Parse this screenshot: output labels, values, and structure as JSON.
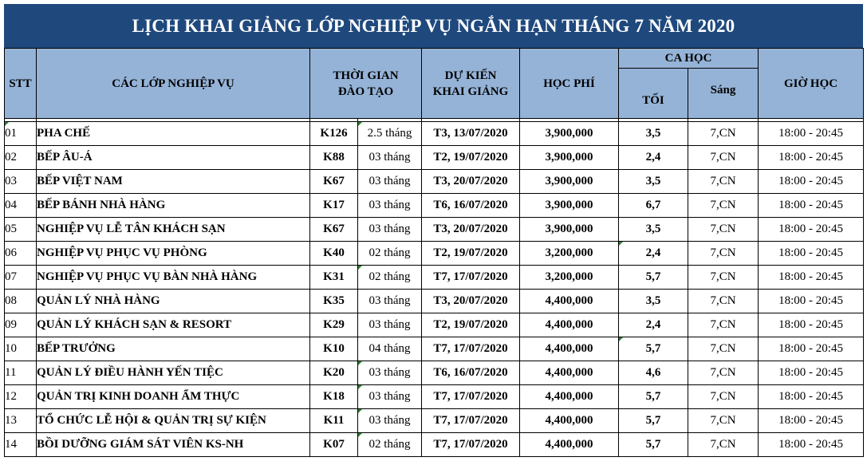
{
  "title": "LỊCH KHAI GIẢNG LỚP NGHIỆP VỤ NGẮN HẠN THÁNG 7 NĂM 2020",
  "colors": {
    "title_bg": "#1f497d",
    "header_bg": "#95b3d7"
  },
  "headers": {
    "stt": "STT",
    "course": "CÁC LỚP NGHIỆP VỤ",
    "duration_l1": "THỜI GIAN",
    "duration_l2": "ĐÀO TẠO",
    "start_l1": "DỰ KIẾN",
    "start_l2": "KHAI GIẢNG",
    "fee": "HỌC PHÍ",
    "ca_hoc": "CA HỌC",
    "toi": "TỐI",
    "sang": "Sáng",
    "gio_hoc": "GIỜ HỌC"
  },
  "rows": [
    {
      "stt": "01",
      "name": "PHA CHẾ",
      "code": "K126",
      "duration": "2.5 tháng",
      "start": "T3, 13/07/2020",
      "fee": "3,900,000",
      "toi": "3,5",
      "sang": "7,CN",
      "time": "18:00 - 20:45"
    },
    {
      "stt": "02",
      "name": "BẾP ÂU-Á",
      "code": "K88",
      "duration": "03 tháng",
      "start": "T2, 19/07/2020",
      "fee": "3,900,000",
      "toi": "2,4",
      "sang": "7,CN",
      "time": "18:00 - 20:45"
    },
    {
      "stt": "03",
      "name": "BẾP VIỆT NAM",
      "code": "K67",
      "duration": "03 tháng",
      "start": "T3, 20/07/2020",
      "fee": "3,900,000",
      "toi": "3,5",
      "sang": "7,CN",
      "time": "18:00 - 20:45"
    },
    {
      "stt": "04",
      "name": "BẾP BÁNH NHÀ HÀNG",
      "code": "K17",
      "duration": "03 tháng",
      "start": "T6, 16/07/2020",
      "fee": "3,900,000",
      "toi": "6,7",
      "sang": "7,CN",
      "time": "18:00 - 20:45"
    },
    {
      "stt": "05",
      "name": "NGHIỆP VỤ LỄ TÂN KHÁCH SẠN",
      "code": "K67",
      "duration": "03 tháng",
      "start": "T3, 20/07/2020",
      "fee": "3,900,000",
      "toi": "3,5",
      "sang": "7,CN",
      "time": "18:00 - 20:45"
    },
    {
      "stt": "06",
      "name": "NGHIỆP VỤ PHỤC VỤ PHÒNG",
      "code": "K40",
      "duration": "02 tháng",
      "start": "T2, 19/07/2020",
      "fee": "3,200,000",
      "toi": "2,4",
      "sang": "7,CN",
      "time": "18:00 - 20:45"
    },
    {
      "stt": "07",
      "name": "NGHIỆP VỤ PHỤC VỤ BÀN NHÀ HÀNG",
      "code": "K31",
      "duration": "02 tháng",
      "start": "T7, 17/07/2020",
      "fee": "3,200,000",
      "toi": "5,7",
      "sang": "7,CN",
      "time": "18:00 - 20:45"
    },
    {
      "stt": "08",
      "name": "QUẢN LÝ NHÀ HÀNG",
      "code": "K35",
      "duration": "03 tháng",
      "start": "T3, 20/07/2020",
      "fee": "4,400,000",
      "toi": "3,5",
      "sang": "7,CN",
      "time": "18:00 - 20:45"
    },
    {
      "stt": "09",
      "name": "QUẢN LÝ KHÁCH SẠN & RESORT",
      "code": "K29",
      "duration": "03 tháng",
      "start": "T2, 19/07/2020",
      "fee": "4,400,000",
      "toi": "2,4",
      "sang": "7,CN",
      "time": "18:00 - 20:45"
    },
    {
      "stt": "10",
      "name": "BẾP TRƯỞNG",
      "code": "K10",
      "duration": "04 tháng",
      "start": "T7, 17/07/2020",
      "fee": "4,400,000",
      "toi": "5,7",
      "sang": "7,CN",
      "time": "18:00 - 20:45"
    },
    {
      "stt": "11",
      "name": "QUẢN LÝ ĐIỀU HÀNH YẾN TIỆC",
      "code": "K20",
      "duration": "03 tháng",
      "start": "T6, 16/07/2020",
      "fee": "4,400,000",
      "toi": "4,6",
      "sang": "7,CN",
      "time": "18:00 - 20:45"
    },
    {
      "stt": "12",
      "name": "QUẢN TRỊ KINH DOANH ẨM THỰC",
      "code": "K18",
      "duration": "03 tháng",
      "start": "T7, 17/07/2020",
      "fee": "4,400,000",
      "toi": "5,7",
      "sang": "7,CN",
      "time": "18:00 - 20:45"
    },
    {
      "stt": "13",
      "name": "TỔ CHỨC LỄ HỘI & QUẢN TRỊ SỰ KIỆN",
      "code": "K11",
      "duration": "03 tháng",
      "start": "T7, 17/07/2020",
      "fee": "4,400,000",
      "toi": "5,7",
      "sang": "7,CN",
      "time": "18:00 - 20:45"
    },
    {
      "stt": "14",
      "name": "BỒI DƯỠNG GIÁM SÁT VIÊN KS-NH",
      "code": "K07",
      "duration": "02 tháng",
      "start": "T7, 17/07/2020",
      "fee": "4,400,000",
      "toi": "5,7",
      "sang": "7,CN",
      "time": "18:00 - 20:45"
    }
  ]
}
